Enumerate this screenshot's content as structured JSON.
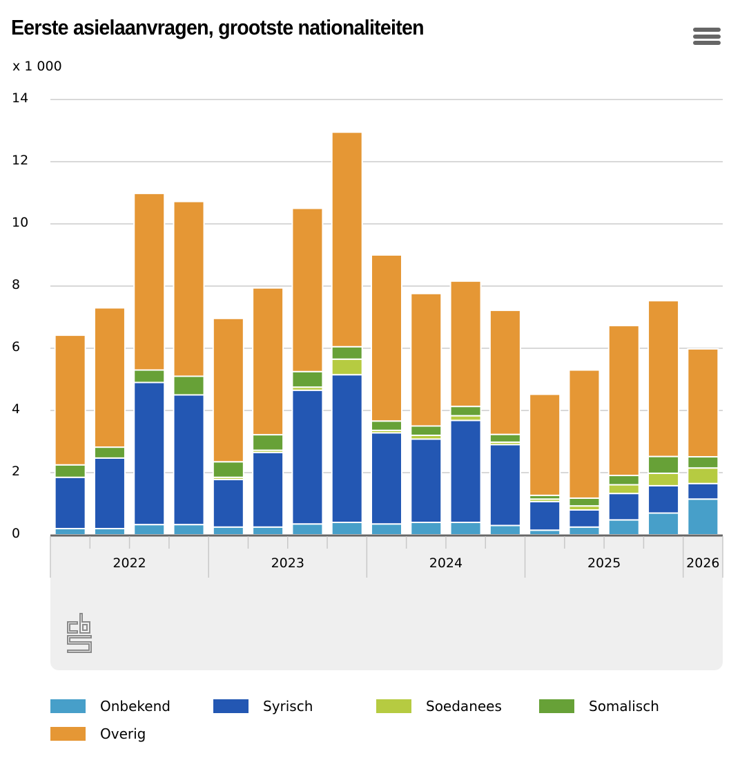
{
  "header": {
    "title": "Eerste asielaanvragen, grootste nationaliteiten",
    "menu_icon": "hamburger-menu-icon"
  },
  "logo": {
    "name": "cbs-logo"
  },
  "chart_data": {
    "type": "bar",
    "stacked": true,
    "title": "Eerste asielaanvragen, grootste nationaliteiten",
    "xlabel": "",
    "ylabel": "x 1 000",
    "ylim": [
      0,
      14
    ],
    "yticks": [
      0,
      2,
      4,
      6,
      8,
      10,
      12,
      14
    ],
    "grid": true,
    "legend_position": "bottom",
    "categories": [
      "2022-Q1",
      "2022-Q2",
      "2022-Q3",
      "2022-Q4",
      "2023-Q1",
      "2023-Q2",
      "2023-Q3",
      "2023-Q4",
      "2024-Q1",
      "2024-Q2",
      "2024-Q3",
      "2024-Q4",
      "2025-Q1",
      "2025-Q2",
      "2025-Q3",
      "2025-Q4",
      "2026-Q1"
    ],
    "year_groups": [
      {
        "label": "2022",
        "count": 4
      },
      {
        "label": "2023",
        "count": 4
      },
      {
        "label": "2024",
        "count": 4
      },
      {
        "label": "2025",
        "count": 4
      },
      {
        "label": "2026",
        "count": 1
      }
    ],
    "series": [
      {
        "name": "Onbekend",
        "color": "#479fc9",
        "values": [
          0.2,
          0.2,
          0.33,
          0.33,
          0.25,
          0.25,
          0.35,
          0.4,
          0.35,
          0.4,
          0.4,
          0.3,
          0.15,
          0.25,
          0.48,
          0.7,
          1.15
        ]
      },
      {
        "name": "Syrisch",
        "color": "#2357b3",
        "values": [
          1.65,
          2.27,
          4.57,
          4.17,
          1.53,
          2.4,
          4.3,
          4.75,
          2.93,
          2.68,
          3.28,
          2.6,
          0.92,
          0.55,
          0.85,
          0.88,
          0.5
        ]
      },
      {
        "name": "Soedanees",
        "color": "#b6cb41",
        "values": [
          0,
          0,
          0,
          0,
          0.07,
          0.07,
          0.1,
          0.5,
          0.08,
          0.12,
          0.15,
          0.08,
          0.08,
          0.13,
          0.28,
          0.4,
          0.5
        ]
      },
      {
        "name": "Somalisch",
        "color": "#67a137",
        "values": [
          0.4,
          0.35,
          0.4,
          0.6,
          0.5,
          0.5,
          0.5,
          0.4,
          0.3,
          0.3,
          0.3,
          0.25,
          0.12,
          0.25,
          0.3,
          0.54,
          0.36
        ]
      },
      {
        "name": "Overig",
        "color": "#e59735",
        "values": [
          4.17,
          4.48,
          5.68,
          5.62,
          4.61,
          4.72,
          5.25,
          6.9,
          5.34,
          4.26,
          4.03,
          3.99,
          3.25,
          4.12,
          4.82,
          5.01,
          3.47
        ]
      }
    ]
  }
}
